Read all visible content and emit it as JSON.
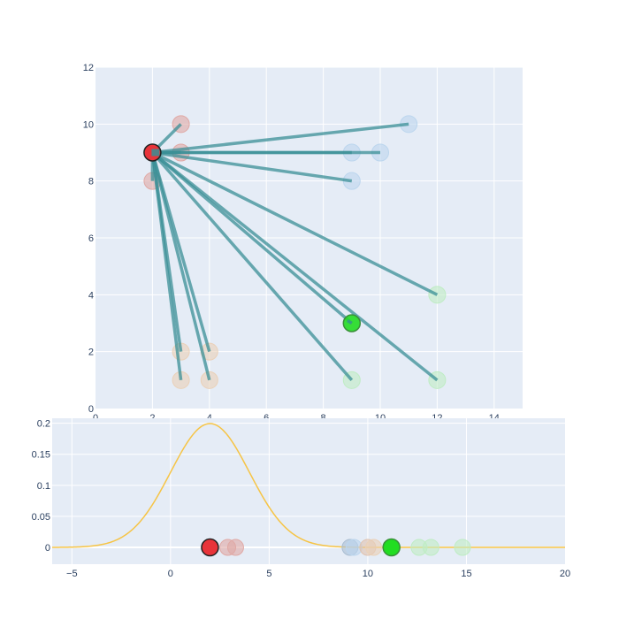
{
  "chart_data": [
    {
      "type": "scatter",
      "title": "",
      "xlabel": "",
      "ylabel": "",
      "xlim": [
        0,
        15
      ],
      "ylim": [
        0,
        12
      ],
      "xticks": [
        0,
        2,
        4,
        6,
        8,
        10,
        12,
        14
      ],
      "yticks": [
        0,
        2,
        4,
        6,
        8,
        10,
        12
      ],
      "grid": true,
      "origin_point": {
        "x": 2,
        "y": 9,
        "color": "#e8343a"
      },
      "highlight_point": {
        "x": 9,
        "y": 3,
        "color": "#22dd22"
      },
      "lines_from_origin_to": [
        {
          "x": 3,
          "y": 10
        },
        {
          "x": 3,
          "y": 9
        },
        {
          "x": 2,
          "y": 8
        },
        {
          "x": 3,
          "y": 2
        },
        {
          "x": 3,
          "y": 1
        },
        {
          "x": 4,
          "y": 2
        },
        {
          "x": 4,
          "y": 1
        },
        {
          "x": 11,
          "y": 10
        },
        {
          "x": 9,
          "y": 9
        },
        {
          "x": 10,
          "y": 9
        },
        {
          "x": 9,
          "y": 8
        },
        {
          "x": 12,
          "y": 4
        },
        {
          "x": 9,
          "y": 3
        },
        {
          "x": 9,
          "y": 1
        },
        {
          "x": 12,
          "y": 1
        }
      ],
      "faded_points": [
        {
          "x": 3,
          "y": 10,
          "color": "#e0a9a5"
        },
        {
          "x": 3,
          "y": 9,
          "color": "#e0a9a5"
        },
        {
          "x": 2,
          "y": 8,
          "color": "#e0a9a5"
        },
        {
          "x": 3,
          "y": 2,
          "color": "#ead1b8"
        },
        {
          "x": 3,
          "y": 1,
          "color": "#ead1b8"
        },
        {
          "x": 4,
          "y": 2,
          "color": "#ead1b8"
        },
        {
          "x": 4,
          "y": 1,
          "color": "#ead1b8"
        },
        {
          "x": 11,
          "y": 10,
          "color": "#bcd6ee"
        },
        {
          "x": 9,
          "y": 9,
          "color": "#bcd6ee"
        },
        {
          "x": 10,
          "y": 9,
          "color": "#bcd6ee"
        },
        {
          "x": 9,
          "y": 8,
          "color": "#bcd6ee"
        },
        {
          "x": 12,
          "y": 4,
          "color": "#bfecc4"
        },
        {
          "x": 9,
          "y": 1,
          "color": "#bfecc4"
        },
        {
          "x": 12,
          "y": 1,
          "color": "#bfecc4"
        }
      ],
      "line_color": "#3a8f96"
    },
    {
      "type": "line",
      "title": "",
      "xlabel": "",
      "ylabel": "",
      "xlim": [
        -6,
        20
      ],
      "ylim": [
        -0.027,
        0.208
      ],
      "xticks": [
        -5,
        0,
        5,
        10,
        15,
        20
      ],
      "yticks": [
        0,
        0.05,
        0.1,
        0.15,
        0.2
      ],
      "ytick_labels": [
        "0",
        "0.05",
        "0.1",
        "0.15",
        "0.2"
      ],
      "grid": true,
      "curve": {
        "type": "gaussian",
        "mean": 2,
        "sd": 2,
        "color": "#f6c445"
      },
      "faded_points": [
        {
          "x": 2.9,
          "y": 0,
          "color": "#e0a9a5"
        },
        {
          "x": 3.3,
          "y": 0,
          "color": "#e0a9a5"
        },
        {
          "x": 9.1,
          "y": 0,
          "color": "#a9bed3"
        },
        {
          "x": 9.3,
          "y": 0,
          "color": "#bcd6ee"
        },
        {
          "x": 10.0,
          "y": 0,
          "color": "#e0c3b0"
        },
        {
          "x": 10.3,
          "y": 0,
          "color": "#ead1b8"
        },
        {
          "x": 12.6,
          "y": 0,
          "color": "#bfecc4"
        },
        {
          "x": 13.2,
          "y": 0,
          "color": "#bfecc4"
        },
        {
          "x": 14.8,
          "y": 0,
          "color": "#bfecc4"
        }
      ],
      "origin_point": {
        "x": 2,
        "y": 0,
        "color": "#e8343a"
      },
      "highlight_point": {
        "x": 11.2,
        "y": 0,
        "color": "#22dd22"
      }
    }
  ]
}
